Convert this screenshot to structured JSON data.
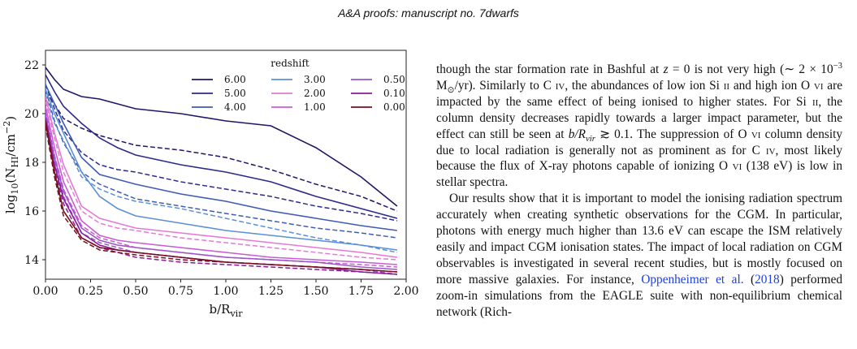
{
  "header": {
    "running_head": "A&A proofs: manuscript no. 7dwarfs"
  },
  "chart_data": {
    "type": "line",
    "xlabel": "b/R_vir",
    "ylabel": "log10(N_HI/cm^-2)",
    "xlim": [
      0,
      2
    ],
    "ylim": [
      13.2,
      22.6
    ],
    "x_ticks": [
      "0.00",
      "0.25",
      "0.50",
      "0.75",
      "1.00",
      "1.25",
      "1.50",
      "1.75",
      "2.00"
    ],
    "y_ticks": [
      "14",
      "16",
      "18",
      "20",
      "22"
    ],
    "grid": false,
    "legend_title": "redshift",
    "legend_placement": "top-right",
    "x": [
      0.0,
      0.05,
      0.1,
      0.2,
      0.3,
      0.4,
      0.5,
      0.75,
      1.0,
      1.25,
      1.5,
      1.75,
      1.95
    ],
    "series": [
      {
        "name": "6.00",
        "color": "#1f1668",
        "solid": [
          21.9,
          21.4,
          21.0,
          20.7,
          20.6,
          20.4,
          20.2,
          20.0,
          19.7,
          19.5,
          18.6,
          17.4,
          16.2
        ],
        "dashed": [
          20.9,
          20.4,
          19.8,
          19.4,
          19.1,
          18.9,
          18.7,
          18.5,
          18.2,
          17.7,
          17.1,
          16.6,
          16.0
        ]
      },
      {
        "name": "5.00",
        "color": "#2b2a8c",
        "solid": [
          21.6,
          20.9,
          20.3,
          19.6,
          19.0,
          18.6,
          18.3,
          17.9,
          17.6,
          17.2,
          16.6,
          16.1,
          15.7
        ],
        "dashed": [
          21.2,
          20.2,
          19.3,
          18.4,
          17.9,
          17.7,
          17.6,
          17.2,
          16.9,
          16.6,
          16.2,
          15.9,
          15.6
        ]
      },
      {
        "name": "4.00",
        "color": "#3e5bb8",
        "solid": [
          21.2,
          20.4,
          19.6,
          18.2,
          17.5,
          17.3,
          17.1,
          16.7,
          16.4,
          16.0,
          15.7,
          15.4,
          15.2
        ],
        "dashed": [
          21.0,
          19.7,
          18.8,
          17.6,
          17.1,
          16.8,
          16.5,
          16.2,
          15.9,
          15.6,
          15.3,
          15.1,
          14.9
        ]
      },
      {
        "name": "3.00",
        "color": "#5b8fd8",
        "solid": [
          21.0,
          20.0,
          19.2,
          17.6,
          16.6,
          16.1,
          15.8,
          15.5,
          15.2,
          15.0,
          14.8,
          14.6,
          14.4
        ],
        "dashed": [
          20.8,
          19.6,
          18.9,
          17.4,
          16.9,
          16.6,
          16.4,
          16.1,
          15.7,
          15.3,
          14.9,
          14.6,
          14.3
        ]
      },
      {
        "name": "2.00",
        "color": "#e57ad4",
        "solid": [
          20.7,
          19.2,
          17.9,
          16.2,
          15.7,
          15.5,
          15.3,
          15.1,
          14.9,
          14.7,
          14.5,
          14.3,
          14.1
        ],
        "dashed": [
          20.5,
          19.0,
          17.6,
          16.0,
          15.5,
          15.3,
          15.2,
          14.9,
          14.7,
          14.5,
          14.3,
          14.1,
          14.0
        ]
      },
      {
        "name": "1.00",
        "color": "#c85bd6",
        "solid": [
          20.3,
          18.6,
          17.2,
          15.6,
          15.0,
          14.8,
          14.7,
          14.5,
          14.3,
          14.1,
          14.0,
          13.9,
          13.8
        ],
        "dashed": [
          20.1,
          18.3,
          16.9,
          15.4,
          14.9,
          14.7,
          14.5,
          14.3,
          14.1,
          14.0,
          13.9,
          13.8,
          13.7
        ]
      },
      {
        "name": "0.50",
        "color": "#9b55c8",
        "solid": [
          20.0,
          18.2,
          16.8,
          15.3,
          14.8,
          14.6,
          14.5,
          14.3,
          14.1,
          14.0,
          13.9,
          13.7,
          13.6
        ],
        "dashed": [
          19.8,
          18.0,
          16.6,
          15.1,
          14.7,
          14.5,
          14.3,
          14.1,
          13.9,
          13.8,
          13.7,
          13.6,
          13.4
        ]
      },
      {
        "name": "0.10",
        "color": "#8a1a9a",
        "solid": [
          19.8,
          17.9,
          16.5,
          15.1,
          14.6,
          14.4,
          14.3,
          14.1,
          13.9,
          13.8,
          13.7,
          13.5,
          13.4
        ],
        "dashed": [
          19.6,
          17.7,
          16.3,
          14.9,
          14.5,
          14.3,
          14.1,
          13.9,
          13.8,
          13.7,
          13.6,
          13.5,
          13.4
        ]
      },
      {
        "name": "0.00",
        "color": "#7a0f1f",
        "solid": [
          19.7,
          17.6,
          16.0,
          14.9,
          14.5,
          14.4,
          14.3,
          14.1,
          13.9,
          13.8,
          13.7,
          13.6,
          13.5
        ],
        "dashed": [
          19.5,
          17.4,
          15.8,
          14.8,
          14.4,
          14.3,
          14.2,
          14.0,
          13.9,
          13.8,
          13.7,
          13.6,
          13.5
        ]
      }
    ]
  },
  "text": {
    "p1": [
      "though the star formation rate in Bashful at ",
      "z",
      " = 0 is not very high (∼ 2 × 10",
      "−3",
      " M",
      "⊙",
      "/yr). Similarly to C",
      " iv",
      ", the abundances of low ion Si",
      " ii",
      " and high ion O",
      " vi",
      " are impacted by the same effect of being ionised to higher states. For Si",
      " ii",
      ", the column density decreases rapidly towards a larger impact parameter, but the effect can still be seen at ",
      "b/R",
      "vir",
      " ≳ 0.1. The suppression of O",
      " vi",
      " column density due to local radiation is generally not as prominent as for C",
      " iv",
      ", most likely because the flux of X-ray photons capable of ionizing O",
      " vi",
      " (138 eV) is low in stellar spectra."
    ],
    "p2_a": "Our results show that it is important to model the ionising radiation spectrum accurately when creating synthetic observations for the CGM. In particular, photons with energy much higher than 13.6 eV can escape the ISM relatively easily and impact CGM ionisation states. The impact of local radiation on CGM observables is investigated in several recent studies, but is mostly focused on more massive galaxies. For instance, ",
    "p2_link": "Oppenheimer et al.",
    "p2_year_open": " (",
    "p2_year": "2018",
    "p2_b": ") performed zoom-in simulations from the EAGLE suite with non-equilibrium chemical network (Rich-"
  }
}
